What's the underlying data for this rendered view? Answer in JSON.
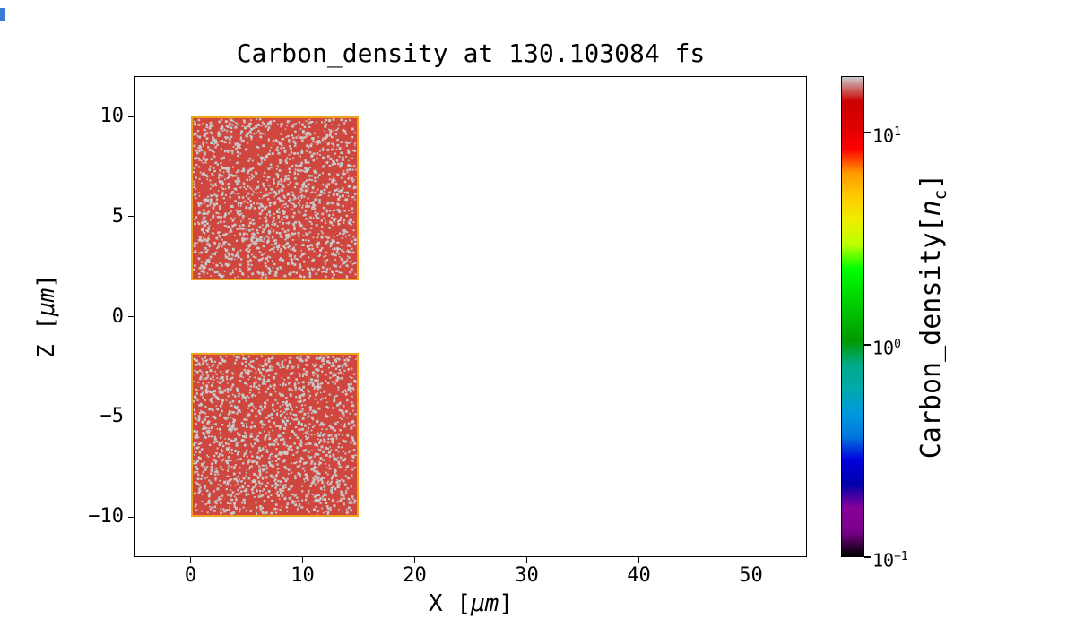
{
  "figure": {
    "background": "#ffffff",
    "corner_artifact_color": "#3a7bd5"
  },
  "chart_data": {
    "type": "heatmap",
    "title": "Carbon_density at 130.103084 fs",
    "time_fs": 130.103084,
    "xlabel": "X [μm]",
    "ylabel": "Z [μm]",
    "xlabel_parts": {
      "pre": "X [",
      "unit": "μm",
      "post": "]"
    },
    "ylabel_parts": {
      "pre": "Z [",
      "unit": "μm",
      "post": "]"
    },
    "xlim": [
      -5,
      55
    ],
    "zlim": [
      -12,
      12
    ],
    "grid": false,
    "legend": "none",
    "x_ticks": [
      0,
      10,
      20,
      30,
      40,
      50
    ],
    "x_tick_labels": [
      "0",
      "10",
      "20",
      "30",
      "40",
      "50"
    ],
    "z_ticks": [
      10,
      5,
      0,
      -5,
      -10
    ],
    "z_tick_labels": [
      "10",
      "5",
      "0",
      "−5",
      "−10"
    ],
    "blocks": [
      {
        "x0": 0,
        "x1": 15,
        "z0": 1.8,
        "z1": 10,
        "fill": "#cf463f",
        "edge": "#efa31c",
        "value_note": "dense carbon slab, ~10–18 n_c, red with saturated gray speckle noise",
        "speckle": {
          "color": "#c8c8c8",
          "coverage": 0.05,
          "min": 1.5,
          "max": 3,
          "seed": 7
        }
      },
      {
        "x0": 0,
        "x1": 15,
        "z0": -10,
        "z1": -1.8,
        "fill": "#cf463f",
        "edge": "#efa31c",
        "value_note": "dense carbon slab, ~10–18 n_c, red with saturated gray speckle noise",
        "speckle": {
          "color": "#c8c8c8",
          "coverage": 0.05,
          "min": 1.5,
          "max": 3,
          "seed": 13
        }
      }
    ],
    "colorbar": {
      "label": "Carbon_density[n_c]",
      "label_parts": {
        "pre": "Carbon_density[",
        "var": "n",
        "sub": "c",
        "post": "]"
      },
      "scale": "log",
      "vmin": 0.1,
      "vmax": 18.4,
      "colormap": "nipy_spectral",
      "ticks": [
        {
          "value": 10,
          "base": "10",
          "exp": "1"
        },
        {
          "value": 1,
          "base": "10",
          "exp": "0"
        },
        {
          "value": 0.1,
          "base": "10",
          "exp": "−1"
        }
      ],
      "stops": [
        [
          "0%",
          "#000000"
        ],
        [
          "5%",
          "#770088"
        ],
        [
          "10%",
          "#880099"
        ],
        [
          "15%",
          "#0000aa"
        ],
        [
          "20%",
          "#0000dd"
        ],
        [
          "25%",
          "#0077dd"
        ],
        [
          "30%",
          "#0099dd"
        ],
        [
          "35%",
          "#00aaaa"
        ],
        [
          "40%",
          "#00aa88"
        ],
        [
          "45%",
          "#009900"
        ],
        [
          "50%",
          "#00bb00"
        ],
        [
          "55%",
          "#00dd00"
        ],
        [
          "60%",
          "#00ff00"
        ],
        [
          "65%",
          "#bbff00"
        ],
        [
          "70%",
          "#eeee00"
        ],
        [
          "75%",
          "#ffcc00"
        ],
        [
          "80%",
          "#ff9900"
        ],
        [
          "85%",
          "#ff0000"
        ],
        [
          "90%",
          "#dd0000"
        ],
        [
          "95%",
          "#cc0000"
        ],
        [
          "100%",
          "#cccccc"
        ]
      ]
    }
  }
}
